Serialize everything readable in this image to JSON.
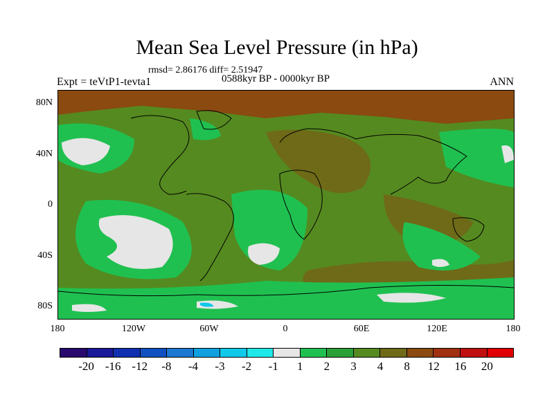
{
  "title": "Mean Sea Level Pressure (in hPa)",
  "stats": "rmsd= 2.86176 diff= 2.51947",
  "subtitle": "0588kyr BP - 0000kyr BP",
  "experiment": "Expt = teVtP1-tevta1",
  "season": "ANN",
  "lat_labels": [
    "80N",
    "40N",
    "0",
    "40S",
    "80S"
  ],
  "lon_labels": [
    "180",
    "120W",
    "60W",
    "0",
    "60E",
    "120E",
    "180"
  ],
  "colorbar": {
    "labels": [
      "-20",
      "-16",
      "-12",
      "-8",
      "-4",
      "-3",
      "-2",
      "-1",
      "1",
      "2",
      "3",
      "4",
      "8",
      "12",
      "16",
      "20"
    ],
    "colors": [
      "#2a0a6e",
      "#1a1a9a",
      "#1030b0",
      "#1050c0",
      "#1a78d0",
      "#10a0e0",
      "#10c8e8",
      "#20e8e8",
      "#e6e6e6",
      "#20c050",
      "#2aa038",
      "#558a20",
      "#6e6a18",
      "#8a4a10",
      "#a03010",
      "#c01010",
      "#e00000"
    ]
  }
}
